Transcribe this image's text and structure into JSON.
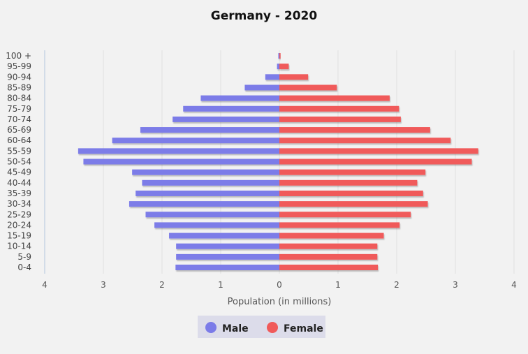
{
  "chart_data": {
    "type": "bar",
    "orientation": "horizontal",
    "layout": "population-pyramid",
    "title": "Germany - 2020",
    "xlabel": "Population (in millions)",
    "ylabel": "",
    "xlim": [
      -4,
      4
    ],
    "xticks": [
      -4,
      -3,
      -2,
      -1,
      0,
      1,
      2,
      3,
      4
    ],
    "xtick_labels": [
      "4",
      "3",
      "2",
      "1",
      "0",
      "1",
      "2",
      "3",
      "4"
    ],
    "categories": [
      "0-4",
      "5-9",
      "10-14",
      "15-19",
      "20-24",
      "25-29",
      "30-34",
      "35-39",
      "40-44",
      "45-49",
      "50-54",
      "55-59",
      "60-64",
      "65-69",
      "70-74",
      "75-79",
      "80-84",
      "85-89",
      "90-94",
      "95-99",
      "100 +"
    ],
    "series": [
      {
        "name": "Male",
        "color": "#7b7be8",
        "values": [
          1.77,
          1.76,
          1.76,
          1.88,
          2.13,
          2.28,
          2.56,
          2.45,
          2.34,
          2.51,
          3.34,
          3.43,
          2.85,
          2.37,
          1.82,
          1.64,
          1.34,
          0.59,
          0.24,
          0.04,
          0.005
        ]
      },
      {
        "name": "Female",
        "color": "#f05a5a",
        "values": [
          1.68,
          1.67,
          1.67,
          1.78,
          2.05,
          2.24,
          2.53,
          2.45,
          2.35,
          2.49,
          3.28,
          3.39,
          2.92,
          2.57,
          2.07,
          2.04,
          1.88,
          0.98,
          0.49,
          0.16,
          0.02
        ]
      }
    ],
    "legend": {
      "position": "bottom-center"
    },
    "grid": {
      "x": true,
      "y": false
    }
  }
}
